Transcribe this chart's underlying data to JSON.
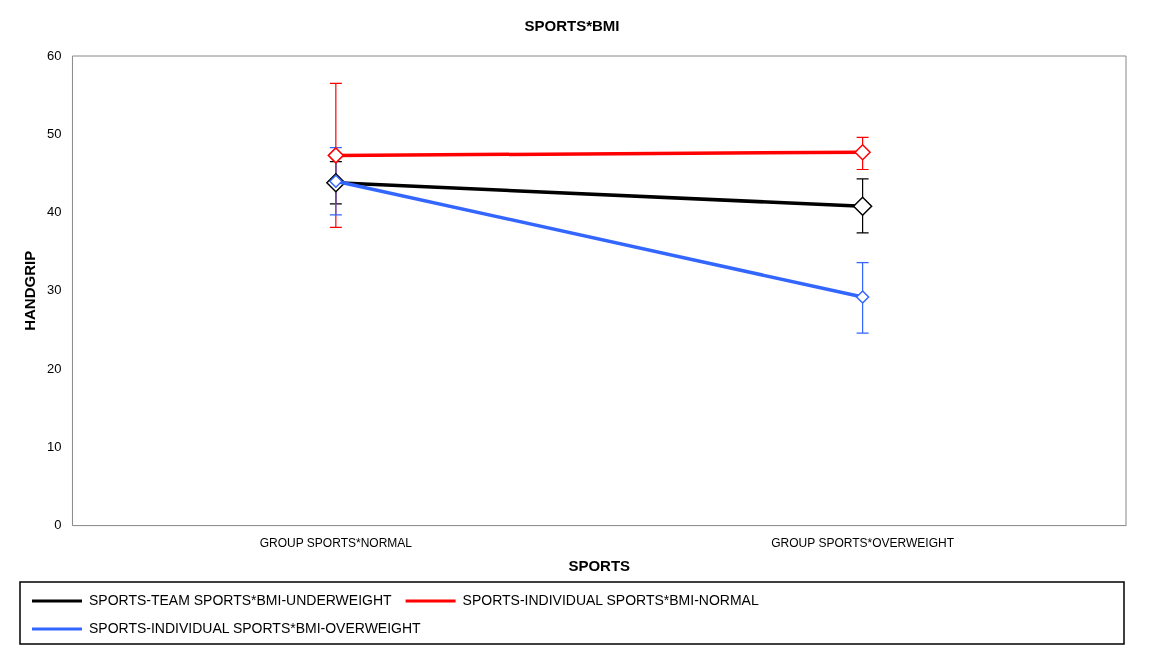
{
  "chart_data": {
    "type": "line",
    "title": "SPORTS*BMI",
    "xlabel": "SPORTS",
    "ylabel": "HANDGRIP",
    "categories": [
      "GROUP SPORTS*NORMAL",
      "GROUP SPORTS*OVERWEIGHT"
    ],
    "series": [
      {
        "name": "SPORTS-TEAM SPORTS*BMI-UNDERWEIGHT",
        "color": "#000000",
        "values": [
          43.8,
          40.8
        ],
        "errors": [
          [
            41.1,
            46.5
          ],
          [
            37.4,
            44.3
          ]
        ]
      },
      {
        "name": "SPORTS-INDIVIDUAL SPORTS*BMI-NORMAL",
        "color": "#ff0000",
        "values": [
          47.3,
          47.7
        ],
        "errors": [
          [
            38.1,
            56.5
          ],
          [
            45.5,
            49.6
          ]
        ]
      },
      {
        "name": "SPORTS-INDIVIDUAL SPORTS*BMI-OVERWEIGHT",
        "color": "#3366ff",
        "values": [
          44.0,
          29.2
        ],
        "errors": [
          [
            39.7,
            48.3
          ],
          [
            24.6,
            33.6
          ]
        ]
      }
    ],
    "ylim": [
      0,
      60
    ],
    "yticks": [
      0,
      10,
      20,
      30,
      40,
      50,
      60
    ],
    "grid": false,
    "legend": "bottom",
    "marker": "diamond",
    "line_style": "solid"
  }
}
